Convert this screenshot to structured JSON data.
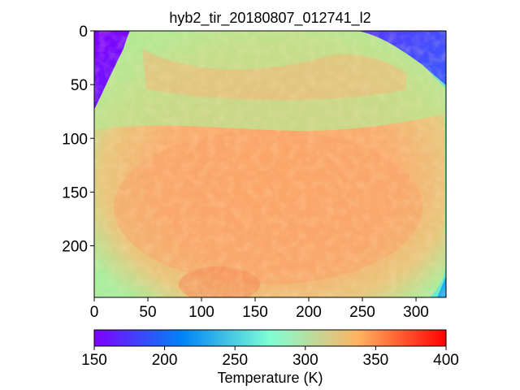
{
  "figure": {
    "title": "hyb2_tir_20180807_012741_l2",
    "x_ticks": [
      "0",
      "50",
      "100",
      "150",
      "200",
      "250",
      "300"
    ],
    "y_ticks": [
      "0",
      "50",
      "100",
      "150",
      "200"
    ],
    "colorbar": {
      "label": "Temperature (K)",
      "colormap": "rainbow",
      "range": [
        150,
        400
      ],
      "ticks": [
        "150",
        "200",
        "250",
        "300",
        "350",
        "400"
      ],
      "colors": [
        "#7f00ff",
        "#0084f7",
        "#7fffd4",
        "#ffb360",
        "#ff0000"
      ]
    },
    "image_extent": {
      "x": [
        0,
        328
      ],
      "y": [
        0,
        248
      ]
    },
    "background_color": "#7f00ff",
    "surface_colors": [
      "#fca86a",
      "#f8b574",
      "#c9e38a",
      "#80f5c0"
    ]
  }
}
